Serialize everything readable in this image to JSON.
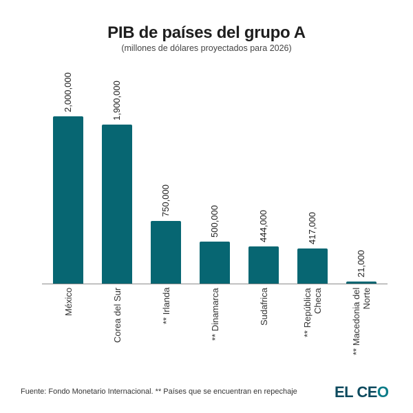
{
  "header": {
    "title": "PIB de países del grupo A",
    "subtitle": "(millones de dólares proyectados para 2026)"
  },
  "footer": {
    "source": "Fuente: Fondo Monetario Internacional. ** Países que se encuentran en repechaje",
    "logo_main": "EL CE",
    "logo_last": "O"
  },
  "colors": {
    "bar": "#076672",
    "logo": "#0d4a5e",
    "axis": "#8a8a8a"
  },
  "chart_data": {
    "type": "bar",
    "title": "PIB de países del grupo A",
    "subtitle": "(millones de dólares proyectados para 2026)",
    "xlabel": "",
    "ylabel": "",
    "categories": [
      "México",
      "Corea del Sur",
      "** Irlanda",
      "** Dinamarca",
      "Sudafrica",
      "** República\nCheca",
      "** Macedonia del\nNorte"
    ],
    "values": [
      2000000,
      1900000,
      750000,
      500000,
      444000,
      417000,
      21000
    ],
    "value_labels": [
      "2,000,000",
      "1,900,000",
      "750,000",
      "500,000",
      "444,000",
      "417,000",
      "21,000"
    ],
    "ylim": [
      0,
      2000000
    ],
    "grid": false,
    "legend": null,
    "annotations": [
      "** Países que se encuentran en repechaje"
    ]
  }
}
